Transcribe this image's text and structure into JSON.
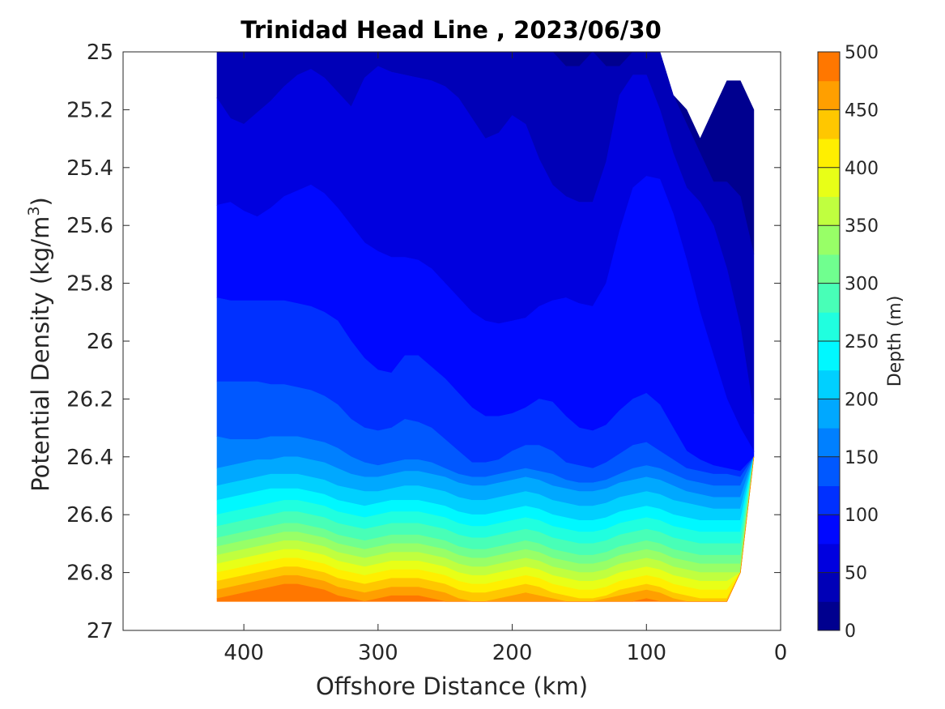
{
  "chart_data": {
    "type": "contour",
    "title": "Trinidad Head Line , 2023/06/30",
    "xlabel": "Offshore Distance (km)",
    "ylabel": "Potential Density (kg/m",
    "ylabel_superscript": "3",
    "ylabel_suffix": ")",
    "colorbar_label": "Depth (m)",
    "xlim": [
      490,
      0
    ],
    "ylim": [
      27,
      25
    ],
    "x_reversed": true,
    "y_reversed": true,
    "x_ticks": [
      "400",
      "300",
      "200",
      "100",
      "0"
    ],
    "y_ticks": [
      "25",
      "25.2",
      "25.4",
      "25.6",
      "25.8",
      "26",
      "26.2",
      "26.4",
      "26.6",
      "26.8",
      "27"
    ],
    "colorbar_ticks": [
      "0",
      "50",
      "100",
      "150",
      "200",
      "250",
      "300",
      "350",
      "400",
      "450",
      "500"
    ],
    "colorbar_range": [
      0,
      500
    ],
    "contour_step": 25,
    "colormap": [
      "#00008f",
      "#0000b7",
      "#0000df",
      "#0008ff",
      "#0030ff",
      "#0058ff",
      "#0080ff",
      "#00a8ff",
      "#00d0ff",
      "#00f8ff",
      "#20ffdf",
      "#48ffb7",
      "#70ff8f",
      "#98ff67",
      "#c0ff3f",
      "#e8ff17",
      "#ffef00",
      "#ffc700",
      "#ff9f00",
      "#ff7700",
      "#ff4f00",
      "#ff2700",
      "#ff0000",
      "#d70000",
      "#af0000"
    ],
    "stations_km": [
      420,
      410,
      400,
      390,
      380,
      370,
      360,
      350,
      340,
      330,
      320,
      310,
      300,
      290,
      280,
      270,
      260,
      250,
      240,
      230,
      220,
      210,
      200,
      190,
      180,
      170,
      160,
      150,
      140,
      130,
      120,
      110,
      100,
      90,
      80,
      70,
      60,
      50,
      40,
      30,
      20
    ],
    "data_bottom_density": [
      26.9,
      26.9,
      26.9,
      26.9,
      26.9,
      26.9,
      26.9,
      26.9,
      26.9,
      26.9,
      26.9,
      26.9,
      26.9,
      26.9,
      26.9,
      26.9,
      26.9,
      26.9,
      26.9,
      26.9,
      26.9,
      26.9,
      26.9,
      26.9,
      26.9,
      26.9,
      26.9,
      26.9,
      26.9,
      26.9,
      26.9,
      26.9,
      26.9,
      26.9,
      26.9,
      26.9,
      26.9,
      26.9,
      26.9,
      26.8,
      26.4
    ],
    "data_top_density": [
      25.0,
      25.0,
      25.0,
      25.0,
      25.0,
      25.0,
      25.0,
      25.0,
      25.0,
      25.0,
      25.0,
      25.0,
      25.0,
      25.0,
      25.0,
      25.0,
      25.0,
      25.0,
      25.0,
      25.0,
      25.0,
      25.0,
      25.0,
      25.0,
      25.0,
      25.0,
      25.0,
      25.0,
      25.0,
      25.0,
      25.0,
      25.0,
      25.0,
      25.0,
      25.15,
      25.2,
      25.3,
      25.2,
      25.1,
      25.1,
      25.2
    ],
    "isolines": [
      {
        "depth": 25,
        "density": [
          25.0,
          25.0,
          25.0,
          25.0,
          25.0,
          25.0,
          25.0,
          25.0,
          25.0,
          25.0,
          25.0,
          25.0,
          25.0,
          25.0,
          25.0,
          25.0,
          25.0,
          25.0,
          25.0,
          25.0,
          25.0,
          25.0,
          25.0,
          25.0,
          25.0,
          25.0,
          25.05,
          25.05,
          25.0,
          25.05,
          25.05,
          25.0,
          25.0,
          25.0,
          25.15,
          25.25,
          25.35,
          25.45,
          25.45,
          25.5,
          25.7
        ]
      },
      {
        "depth": 50,
        "density": [
          25.16,
          25.23,
          25.25,
          25.21,
          25.17,
          25.12,
          25.08,
          25.06,
          25.09,
          25.14,
          25.19,
          25.09,
          25.05,
          25.07,
          25.08,
          25.09,
          25.1,
          25.12,
          25.16,
          25.23,
          25.3,
          25.28,
          25.22,
          25.25,
          25.37,
          25.46,
          25.5,
          25.52,
          25.52,
          25.38,
          25.15,
          25.08,
          25.08,
          25.2,
          25.35,
          25.47,
          25.52,
          25.6,
          25.75,
          25.95,
          26.25
        ]
      },
      {
        "depth": 75,
        "density": [
          25.53,
          25.52,
          25.55,
          25.57,
          25.54,
          25.5,
          25.48,
          25.46,
          25.49,
          25.54,
          25.6,
          25.66,
          25.69,
          25.71,
          25.71,
          25.72,
          25.75,
          25.8,
          25.85,
          25.9,
          25.93,
          25.94,
          25.93,
          25.92,
          25.88,
          25.86,
          25.85,
          25.87,
          25.88,
          25.8,
          25.62,
          25.47,
          25.43,
          25.44,
          25.56,
          25.72,
          25.9,
          26.05,
          26.2,
          26.3,
          26.38
        ]
      },
      {
        "depth": 100,
        "density": [
          25.85,
          25.86,
          25.86,
          25.86,
          25.86,
          25.86,
          25.87,
          25.88,
          25.9,
          25.93,
          26.0,
          26.06,
          26.1,
          26.11,
          26.05,
          26.05,
          26.09,
          26.13,
          26.18,
          26.23,
          26.26,
          26.26,
          26.25,
          26.23,
          26.2,
          26.21,
          26.26,
          26.3,
          26.31,
          26.29,
          26.24,
          26.2,
          26.18,
          26.22,
          26.3,
          26.38,
          26.41,
          26.43,
          26.44,
          26.45,
          26.4
        ]
      },
      {
        "depth": 125,
        "density": [
          26.14,
          26.14,
          26.14,
          26.14,
          26.15,
          26.15,
          26.16,
          26.17,
          26.19,
          26.22,
          26.27,
          26.3,
          26.31,
          26.3,
          26.27,
          26.28,
          26.3,
          26.34,
          26.38,
          26.42,
          26.42,
          26.41,
          26.38,
          26.36,
          26.36,
          26.38,
          26.42,
          26.43,
          26.44,
          26.42,
          26.39,
          26.36,
          26.35,
          26.38,
          26.41,
          26.44,
          26.45,
          26.46,
          26.46,
          26.47,
          26.4
        ]
      },
      {
        "depth": 150,
        "density": [
          26.33,
          26.34,
          26.34,
          26.34,
          26.33,
          26.33,
          26.33,
          26.34,
          26.35,
          26.37,
          26.4,
          26.42,
          26.43,
          26.42,
          26.41,
          26.41,
          26.42,
          26.44,
          26.46,
          26.47,
          26.47,
          26.46,
          26.45,
          26.44,
          26.45,
          26.46,
          26.48,
          26.49,
          26.49,
          26.48,
          26.46,
          26.44,
          26.43,
          26.44,
          26.46,
          26.48,
          26.49,
          26.5,
          26.5,
          26.5,
          26.42
        ]
      },
      {
        "depth": 175,
        "density": [
          26.44,
          26.43,
          26.42,
          26.41,
          26.41,
          26.4,
          26.4,
          26.41,
          26.42,
          26.44,
          26.46,
          26.47,
          26.47,
          26.46,
          26.45,
          26.45,
          26.46,
          26.47,
          26.49,
          26.5,
          26.5,
          26.49,
          26.48,
          26.47,
          26.48,
          26.5,
          26.51,
          26.52,
          26.52,
          26.51,
          26.49,
          26.48,
          26.47,
          26.48,
          26.5,
          26.52,
          26.53,
          26.54,
          26.54,
          26.54,
          26.45
        ]
      },
      {
        "depth": 200,
        "density": [
          26.5,
          26.49,
          26.48,
          26.47,
          26.46,
          26.46,
          26.46,
          26.47,
          26.48,
          26.5,
          26.51,
          26.52,
          26.52,
          26.51,
          26.5,
          26.5,
          26.51,
          26.52,
          26.54,
          26.55,
          26.55,
          26.54,
          26.53,
          26.52,
          26.53,
          26.55,
          26.56,
          26.57,
          26.57,
          26.56,
          26.54,
          26.53,
          26.52,
          26.53,
          26.55,
          26.56,
          26.57,
          26.58,
          26.58,
          26.58,
          26.5
        ]
      },
      {
        "depth": 225,
        "density": [
          26.55,
          26.54,
          26.53,
          26.52,
          26.51,
          26.51,
          26.51,
          26.52,
          26.53,
          26.55,
          26.56,
          26.57,
          26.56,
          26.55,
          26.55,
          26.55,
          26.56,
          26.57,
          26.59,
          26.6,
          26.6,
          26.59,
          26.58,
          26.57,
          26.58,
          26.6,
          26.61,
          26.62,
          26.62,
          26.61,
          26.59,
          26.58,
          26.57,
          26.58,
          26.6,
          26.61,
          26.62,
          26.62,
          26.62,
          26.62,
          26.55
        ]
      },
      {
        "depth": 250,
        "density": [
          26.6,
          26.59,
          26.58,
          26.57,
          26.56,
          26.55,
          26.55,
          26.56,
          26.57,
          26.59,
          26.6,
          26.61,
          26.6,
          26.59,
          26.59,
          26.59,
          26.6,
          26.61,
          26.63,
          26.64,
          26.64,
          26.63,
          26.62,
          26.61,
          26.62,
          26.64,
          26.65,
          26.66,
          26.66,
          26.65,
          26.63,
          26.62,
          26.61,
          26.62,
          26.64,
          26.65,
          26.66,
          26.66,
          26.66,
          26.66,
          26.6
        ]
      },
      {
        "depth": 275,
        "density": [
          26.64,
          26.63,
          26.62,
          26.61,
          26.6,
          26.59,
          26.59,
          26.6,
          26.61,
          26.63,
          26.64,
          26.65,
          26.64,
          26.63,
          26.63,
          26.63,
          26.64,
          26.65,
          26.67,
          26.68,
          26.68,
          26.67,
          26.66,
          26.65,
          26.66,
          26.68,
          26.69,
          26.7,
          26.7,
          26.69,
          26.67,
          26.66,
          26.65,
          26.66,
          26.68,
          26.69,
          26.7,
          26.7,
          26.7,
          26.7,
          26.64
        ]
      },
      {
        "depth": 300,
        "density": [
          26.68,
          26.67,
          26.66,
          26.65,
          26.64,
          26.63,
          26.63,
          26.64,
          26.65,
          26.67,
          26.68,
          26.69,
          26.68,
          26.67,
          26.67,
          26.67,
          26.68,
          26.69,
          26.71,
          26.72,
          26.72,
          26.71,
          26.7,
          26.69,
          26.7,
          26.72,
          26.73,
          26.74,
          26.74,
          26.73,
          26.71,
          26.7,
          26.69,
          26.7,
          26.72,
          26.73,
          26.74,
          26.74,
          26.74,
          26.74,
          26.68
        ]
      },
      {
        "depth": 325,
        "density": [
          26.71,
          26.7,
          26.69,
          26.68,
          26.67,
          26.66,
          26.66,
          26.67,
          26.68,
          26.7,
          26.71,
          26.72,
          26.71,
          26.7,
          26.7,
          26.7,
          26.71,
          26.72,
          26.74,
          26.75,
          26.75,
          26.74,
          26.73,
          26.72,
          26.73,
          26.75,
          26.76,
          26.77,
          26.77,
          26.76,
          26.74,
          26.73,
          26.72,
          26.73,
          26.75,
          26.76,
          26.77,
          26.77,
          26.77,
          26.77,
          26.71
        ]
      },
      {
        "depth": 350,
        "density": [
          26.74,
          26.73,
          26.72,
          26.71,
          26.7,
          26.69,
          26.69,
          26.7,
          26.71,
          26.73,
          26.74,
          26.75,
          26.74,
          26.73,
          26.73,
          26.73,
          26.74,
          26.75,
          26.77,
          26.78,
          26.78,
          26.77,
          26.76,
          26.75,
          26.76,
          26.78,
          26.79,
          26.8,
          26.8,
          26.79,
          26.77,
          26.76,
          26.75,
          26.76,
          26.78,
          26.79,
          26.8,
          26.8,
          26.8,
          26.8,
          26.74
        ]
      },
      {
        "depth": 375,
        "density": [
          26.77,
          26.76,
          26.75,
          26.74,
          26.73,
          26.72,
          26.72,
          26.73,
          26.74,
          26.76,
          26.77,
          26.78,
          26.77,
          26.76,
          26.76,
          26.76,
          26.77,
          26.78,
          26.8,
          26.81,
          26.81,
          26.8,
          26.79,
          26.78,
          26.79,
          26.81,
          26.82,
          26.83,
          26.83,
          26.82,
          26.8,
          26.79,
          26.78,
          26.79,
          26.81,
          26.82,
          26.83,
          26.83,
          26.83,
          26.83,
          26.77
        ]
      },
      {
        "depth": 400,
        "density": [
          26.8,
          26.79,
          26.78,
          26.77,
          26.76,
          26.75,
          26.75,
          26.76,
          26.77,
          26.79,
          26.8,
          26.81,
          26.8,
          26.79,
          26.79,
          26.79,
          26.8,
          26.81,
          26.83,
          26.84,
          26.84,
          26.83,
          26.82,
          26.81,
          26.82,
          26.84,
          26.85,
          26.86,
          26.86,
          26.85,
          26.83,
          26.82,
          26.81,
          26.82,
          26.84,
          26.85,
          26.86,
          26.86,
          26.86,
          26.86,
          26.8
        ]
      },
      {
        "depth": 425,
        "density": [
          26.83,
          26.82,
          26.81,
          26.8,
          26.79,
          26.78,
          26.78,
          26.79,
          26.8,
          26.82,
          26.83,
          26.84,
          26.83,
          26.82,
          26.82,
          26.82,
          26.83,
          26.84,
          26.86,
          26.87,
          26.87,
          26.86,
          26.85,
          26.84,
          26.85,
          26.87,
          26.88,
          26.89,
          26.89,
          26.88,
          26.86,
          26.85,
          26.84,
          26.85,
          26.87,
          26.88,
          26.89,
          26.89,
          26.89,
          26.89,
          26.83
        ]
      },
      {
        "depth": 450,
        "density": [
          26.86,
          26.85,
          26.84,
          26.83,
          26.82,
          26.81,
          26.81,
          26.82,
          26.83,
          26.85,
          26.86,
          26.87,
          26.86,
          26.85,
          26.85,
          26.85,
          26.86,
          26.87,
          26.89,
          26.9,
          26.9,
          26.89,
          26.88,
          26.87,
          26.88,
          26.89,
          26.9,
          26.9,
          26.9,
          26.89,
          26.88,
          26.87,
          26.86,
          26.87,
          26.89,
          26.9,
          26.9,
          26.9,
          26.9,
          26.9,
          26.86
        ]
      },
      {
        "depth": 475,
        "density": [
          26.89,
          26.88,
          26.87,
          26.86,
          26.85,
          26.84,
          26.84,
          26.85,
          26.86,
          26.88,
          26.89,
          26.9,
          26.89,
          26.88,
          26.88,
          26.88,
          26.89,
          26.9,
          26.9,
          26.9,
          26.9,
          26.9,
          26.9,
          26.9,
          26.9,
          26.9,
          26.9,
          26.9,
          26.9,
          26.9,
          26.9,
          26.9,
          26.89,
          26.9,
          26.9,
          26.9,
          26.9,
          26.9,
          26.9,
          26.9,
          26.9
        ]
      }
    ]
  }
}
